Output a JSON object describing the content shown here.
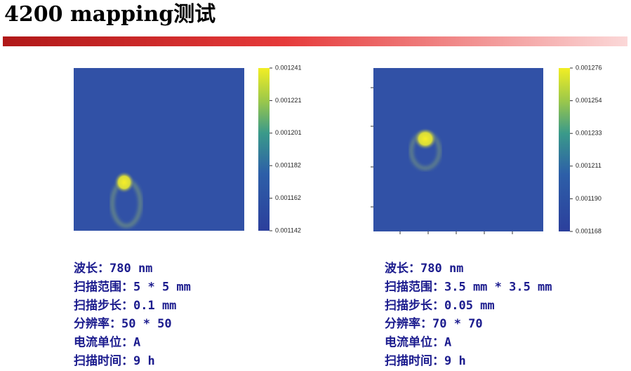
{
  "title": "4200 mapping测试",
  "panels": [
    {
      "colorbar_ticks": [
        "0.001241",
        "0.001221",
        "0.001201",
        "0.001182",
        "0.001162",
        "0.001142"
      ],
      "params": [
        "波长：780 nm",
        "扫描范围：5 * 5 mm",
        "扫描步长：0.1 mm",
        "分辨率：50 * 50",
        "电流单位：A",
        "扫描时间：9 h"
      ]
    },
    {
      "colorbar_ticks": [
        "0.001276",
        "0.001254",
        "0.001233",
        "0.001211",
        "0.001190",
        "0.001168"
      ],
      "params": [
        "波长：780 nm",
        "扫描范围：3.5 mm * 3.5 mm",
        "扫描步长：0.05 mm",
        "分辨率：70 * 70",
        "电流单位：A",
        "扫描时间：9 h"
      ]
    }
  ]
}
